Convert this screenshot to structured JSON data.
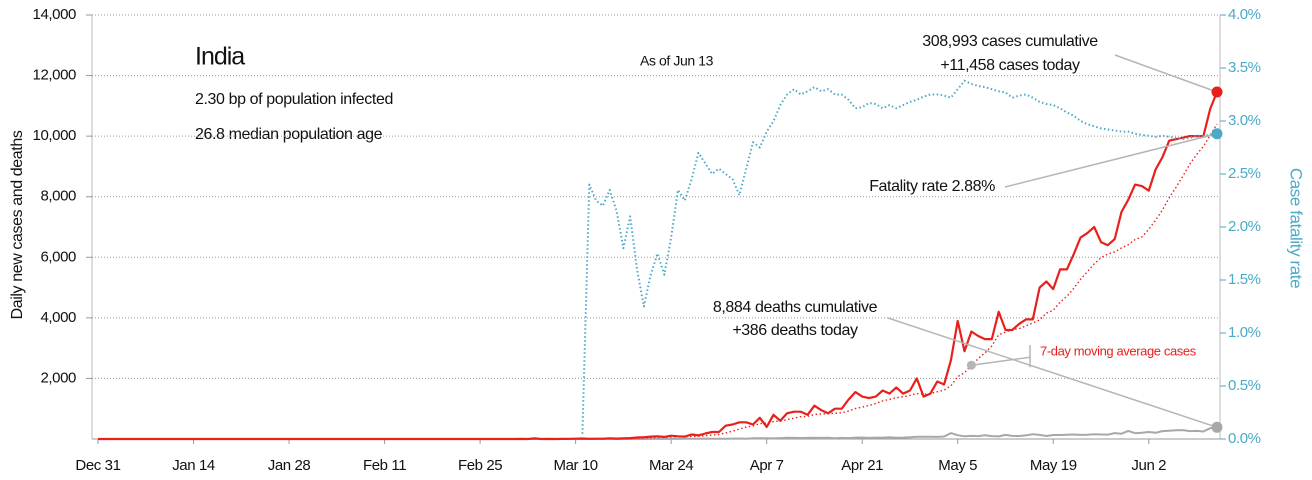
{
  "chart_data": {
    "type": "line",
    "title": "India",
    "annotations": [
      "2.30 bp of population infected",
      "26.8 median population age",
      "As of Jun 13",
      "308,993 cases cumulative",
      "+11,458 cases today",
      "Fatality rate 2.88%",
      "8,884 deaths cumulative",
      "+386 deaths today"
    ],
    "y_label": "Daily new cases and deaths",
    "y2_label": "Case fatality rate",
    "categories": [
      "Dec 31",
      null,
      null,
      null,
      null,
      null,
      null,
      null,
      null,
      null,
      null,
      null,
      null,
      null,
      "Jan 14",
      null,
      null,
      null,
      null,
      null,
      null,
      null,
      null,
      null,
      null,
      null,
      null,
      null,
      "Jan 28",
      null,
      null,
      null,
      null,
      null,
      null,
      null,
      null,
      null,
      null,
      null,
      null,
      null,
      "Feb 11",
      null,
      null,
      null,
      null,
      null,
      null,
      null,
      null,
      null,
      null,
      null,
      null,
      null,
      "Feb 25",
      null,
      null,
      null,
      null,
      null,
      null,
      null,
      null,
      null,
      null,
      null,
      null,
      null,
      "Mar 10",
      null,
      null,
      null,
      null,
      null,
      null,
      null,
      null,
      null,
      null,
      null,
      null,
      null,
      "Mar 24",
      null,
      null,
      null,
      null,
      null,
      null,
      null,
      null,
      null,
      null,
      null,
      null,
      null,
      "Apr 7",
      null,
      null,
      null,
      null,
      null,
      null,
      null,
      null,
      null,
      null,
      null,
      null,
      null,
      "Apr 21",
      null,
      null,
      null,
      null,
      null,
      null,
      null,
      null,
      null,
      null,
      null,
      null,
      null,
      "May 5",
      null,
      null,
      null,
      null,
      null,
      null,
      null,
      null,
      null,
      null,
      null,
      null,
      null,
      "May 19",
      null,
      null,
      null,
      null,
      null,
      null,
      null,
      null,
      null,
      null,
      null,
      null,
      null,
      "Jun 2",
      null,
      null,
      null,
      null,
      null,
      null,
      null,
      null,
      null,
      null
    ],
    "series": [
      {
        "color": "#e8201c",
        "style": "solid",
        "width": 2.2,
        "axis": "y",
        "values": [
          0,
          0,
          0,
          0,
          0,
          0,
          0,
          0,
          0,
          0,
          0,
          0,
          0,
          0,
          0,
          0,
          0,
          0,
          0,
          0,
          0,
          0,
          0,
          0,
          0,
          0,
          0,
          0,
          0,
          0,
          1,
          0,
          0,
          1,
          1,
          0,
          0,
          0,
          0,
          0,
          0,
          0,
          0,
          0,
          0,
          0,
          0,
          0,
          0,
          0,
          0,
          0,
          0,
          0,
          0,
          0,
          0,
          0,
          0,
          0,
          0,
          0,
          2,
          0,
          22,
          1,
          2,
          1,
          3,
          5,
          9,
          18,
          6,
          11,
          11,
          23,
          12,
          23,
          30,
          50,
          60,
          80,
          90,
          70,
          110,
          90,
          80,
          150,
          120,
          180,
          230,
          230,
          440,
          480,
          550,
          550,
          480,
          700,
          400,
          800,
          600,
          850,
          900,
          900,
          800,
          1100,
          950,
          850,
          1000,
          1000,
          1300,
          1550,
          1400,
          1350,
          1400,
          1600,
          1500,
          1700,
          1500,
          1600,
          2000,
          1400,
          1500,
          1900,
          1800,
          2600,
          3900,
          2900,
          3550,
          3400,
          3300,
          3300,
          4200,
          3600,
          3600,
          3800,
          3950,
          3950,
          5000,
          5200,
          4950,
          5600,
          5600,
          6100,
          6650,
          6800,
          7000,
          6500,
          6400,
          6600,
          7500,
          7900,
          8400,
          8350,
          8200,
          8900,
          9300,
          9850,
          9900,
          9950,
          10000,
          10000,
          10000,
          10900,
          11458
        ]
      },
      {
        "name": "7-day moving average cases",
        "color": "#e8201c",
        "style": "dotted",
        "width": 1.4,
        "axis": "y",
        "values": [
          0,
          0,
          0,
          0,
          0,
          0,
          0,
          0,
          0,
          0,
          0,
          0,
          0,
          0,
          0,
          0,
          0,
          0,
          0,
          0,
          0,
          0,
          0,
          0,
          0,
          0,
          0,
          0,
          0,
          0,
          0,
          0,
          0,
          0,
          0,
          0,
          0,
          0,
          0,
          0,
          0,
          0,
          0,
          0,
          0,
          0,
          0,
          0,
          0,
          0,
          0,
          0,
          0,
          0,
          0,
          0,
          0,
          0,
          0,
          0,
          0,
          0,
          0,
          0,
          0,
          0,
          0,
          0,
          0,
          0,
          3,
          5,
          6,
          8,
          10,
          13,
          13,
          15,
          17,
          22,
          29,
          38,
          48,
          55,
          65,
          71,
          76,
          85,
          94,
          107,
          130,
          148,
          202,
          259,
          329,
          392,
          437,
          504,
          528,
          576,
          593,
          636,
          686,
          736,
          750,
          807,
          829,
          836,
          850,
          864,
          921,
          1007,
          1050,
          1107,
          1171,
          1257,
          1307,
          1364,
          1393,
          1443,
          1500,
          1471,
          1500,
          1557,
          1614,
          1757,
          2057,
          2186,
          2436,
          2650,
          2843,
          3071,
          3443,
          3529,
          3614,
          3643,
          3736,
          3829,
          3929,
          4157,
          4250,
          4521,
          4707,
          4971,
          5271,
          5529,
          5786,
          5985,
          6107,
          6178,
          6307,
          6416,
          6586,
          6671,
          6929,
          7229,
          7557,
          7964,
          8314,
          8679,
          9071,
          9386,
          9661,
          10029,
          10401
        ]
      },
      {
        "color": "#a8a8a8",
        "style": "solid",
        "width": 2,
        "axis": "y",
        "values": [
          0,
          0,
          0,
          0,
          0,
          0,
          0,
          0,
          0,
          0,
          0,
          0,
          0,
          0,
          0,
          0,
          0,
          0,
          0,
          0,
          0,
          0,
          0,
          0,
          0,
          0,
          0,
          0,
          0,
          0,
          0,
          0,
          0,
          0,
          0,
          0,
          0,
          0,
          0,
          0,
          0,
          0,
          0,
          0,
          0,
          0,
          0,
          0,
          0,
          0,
          0,
          0,
          0,
          0,
          0,
          0,
          0,
          0,
          0,
          0,
          0,
          0,
          0,
          0,
          0,
          0,
          0,
          0,
          0,
          0,
          0,
          0,
          0,
          0,
          0,
          0,
          0,
          0,
          0,
          0,
          1,
          2,
          3,
          3,
          2,
          3,
          5,
          5,
          7,
          12,
          7,
          9,
          9,
          12,
          17,
          10,
          22,
          24,
          25,
          20,
          30,
          40,
          35,
          32,
          35,
          38,
          36,
          38,
          26,
          37,
          31,
          46,
          50,
          36,
          45,
          46,
          57,
          42,
          45,
          55,
          75,
          72,
          77,
          68,
          83,
          195,
          126,
          89,
          103,
          95,
          127,
          97,
          87,
          134,
          103,
          100,
          120,
          157,
          134,
          100,
          131,
          132,
          140,
          148,
          137,
          142,
          154,
          147,
          146,
          194,
          175,
          269,
          192,
          205,
          230,
          204,
          260,
          273,
          287,
          294,
          261,
          266,
          246,
          357,
          386
        ]
      },
      {
        "color": "#4aaac8",
        "style": "dotted",
        "width": 2,
        "axis": "y2",
        "values": [
          null,
          null,
          null,
          null,
          null,
          null,
          null,
          null,
          null,
          null,
          null,
          null,
          null,
          null,
          null,
          null,
          null,
          null,
          null,
          null,
          null,
          null,
          null,
          null,
          null,
          null,
          null,
          null,
          null,
          null,
          null,
          null,
          null,
          null,
          null,
          null,
          null,
          null,
          null,
          null,
          null,
          null,
          null,
          null,
          null,
          null,
          null,
          null,
          null,
          null,
          null,
          null,
          null,
          null,
          null,
          null,
          null,
          null,
          null,
          null,
          null,
          null,
          null,
          null,
          null,
          null,
          null,
          null,
          null,
          null,
          null,
          0.05,
          2.4,
          2.25,
          2.2,
          2.35,
          2.15,
          1.8,
          2.1,
          1.6,
          1.25,
          1.55,
          1.75,
          1.55,
          1.9,
          2.35,
          2.25,
          2.45,
          2.7,
          2.6,
          2.5,
          2.55,
          2.5,
          2.45,
          2.3,
          2.55,
          2.8,
          2.75,
          2.9,
          3.0,
          3.15,
          3.25,
          3.3,
          3.25,
          3.28,
          3.32,
          3.28,
          3.3,
          3.25,
          3.25,
          3.2,
          3.12,
          3.13,
          3.17,
          3.16,
          3.12,
          3.15,
          3.12,
          3.15,
          3.18,
          3.2,
          3.23,
          3.25,
          3.25,
          3.24,
          3.22,
          3.3,
          3.38,
          3.35,
          3.33,
          3.32,
          3.3,
          3.28,
          3.27,
          3.22,
          3.24,
          3.25,
          3.22,
          3.18,
          3.16,
          3.15,
          3.12,
          3.08,
          3.05,
          3.0,
          2.97,
          2.95,
          2.93,
          2.92,
          2.91,
          2.9,
          2.9,
          2.88,
          2.87,
          2.86,
          2.85,
          2.86,
          2.85,
          2.84,
          2.83,
          2.84,
          2.86,
          2.86,
          2.87,
          2.88
        ]
      }
    ],
    "ylim": [
      0,
      14000
    ],
    "yticks": [
      {
        "value": 2000,
        "label": "2,000"
      },
      {
        "value": 4000,
        "label": "4,000"
      },
      {
        "value": 6000,
        "label": "6,000"
      },
      {
        "value": 8000,
        "label": "8,000"
      },
      {
        "value": 10000,
        "label": "10,000"
      },
      {
        "value": 12000,
        "label": "12,000"
      },
      {
        "value": 14000,
        "label": "14,000"
      }
    ],
    "y2lim": [
      0,
      4
    ],
    "y2ticks": [
      {
        "value": 0,
        "label": "0.0%"
      },
      {
        "value": 0.5,
        "label": "0.5%"
      },
      {
        "value": 1,
        "label": "1.0%"
      },
      {
        "value": 1.5,
        "label": "1.5%"
      },
      {
        "value": 2,
        "label": "2.0%"
      },
      {
        "value": 2.5,
        "label": "2.5%"
      },
      {
        "value": 3,
        "label": "3.0%"
      },
      {
        "value": 3.5,
        "label": "3.5%"
      },
      {
        "value": 4,
        "label": "4.0%"
      }
    ],
    "grid": true
  }
}
